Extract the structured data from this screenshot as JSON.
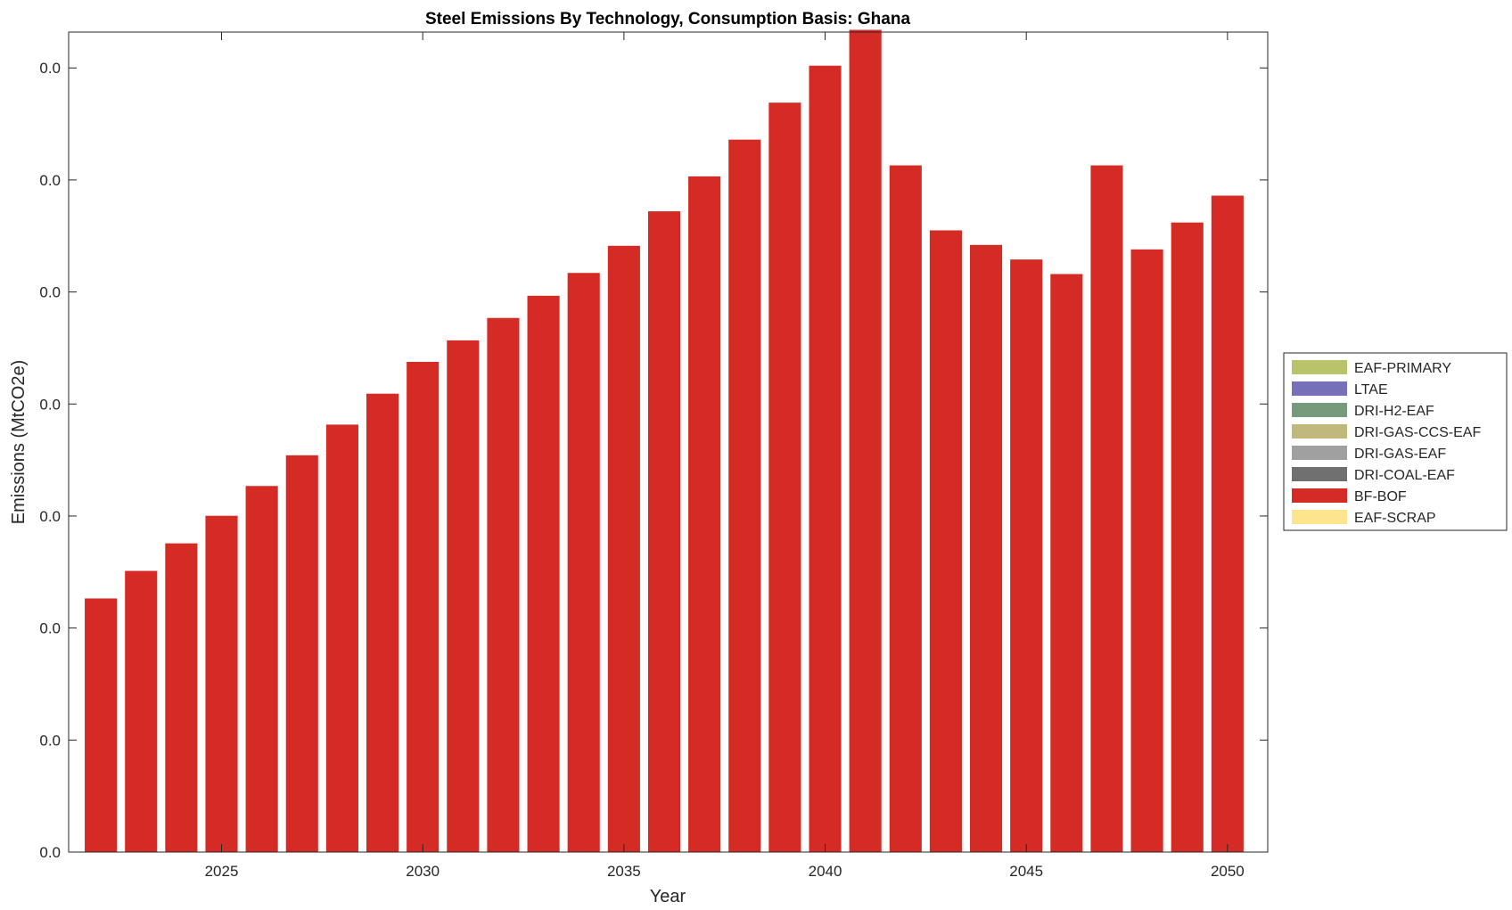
{
  "chart_data": {
    "type": "bar",
    "stacked": true,
    "title": "Steel Emissions By Technology, Consumption Basis: Ghana",
    "xlabel": "Year",
    "ylabel": "Emissions (MtCO2e)",
    "x": [
      2022,
      2023,
      2024,
      2025,
      2026,
      2027,
      2028,
      2029,
      2030,
      2031,
      2032,
      2033,
      2034,
      2035,
      2036,
      2037,
      2038,
      2039,
      2040,
      2041,
      2042,
      2043,
      2044,
      2045,
      2046,
      2047,
      2048,
      2049,
      2050
    ],
    "xlim": [
      2021.2,
      2051.0
    ],
    "ylim": [
      0,
      0.0366
    ],
    "xticks": [
      2025,
      2030,
      2035,
      2040,
      2045,
      2050
    ],
    "yticks": [
      0,
      0.005,
      0.01,
      0.015,
      0.02,
      0.025,
      0.03,
      0.035
    ],
    "ytick_labels": [
      "0.0",
      "0.0",
      "0.0",
      "0.0",
      "0.0",
      "0.0",
      "0.0",
      "0.0"
    ],
    "grid": false,
    "legend_position": "right",
    "series": [
      {
        "name": "EAF-PRIMARY",
        "color": "#b8c36a",
        "values": [
          0,
          0,
          0,
          0,
          0,
          0,
          0,
          0,
          0,
          0,
          0,
          0,
          0,
          0,
          0,
          0,
          0,
          0,
          0,
          0,
          0,
          0,
          0,
          0,
          0,
          0,
          0,
          0,
          0
        ]
      },
      {
        "name": "LTAE",
        "color": "#7570b8",
        "values": [
          0,
          0,
          0,
          0,
          0,
          0,
          0,
          0,
          0,
          0,
          0,
          0,
          0,
          0,
          0,
          0,
          0,
          0,
          0,
          0,
          0,
          0,
          0,
          0,
          0,
          0,
          0,
          0,
          0
        ]
      },
      {
        "name": "DRI-H2-EAF",
        "color": "#779a7d",
        "values": [
          0,
          0,
          0,
          0,
          0,
          0,
          0,
          0,
          0,
          0,
          0,
          0,
          0,
          0,
          0,
          0,
          0,
          0,
          0,
          0,
          0,
          0,
          0,
          0,
          0,
          0,
          0,
          0,
          0
        ]
      },
      {
        "name": "DRI-GAS-CCS-EAF",
        "color": "#c1b97c",
        "values": [
          0,
          0,
          0,
          0,
          0,
          0,
          0,
          0,
          0,
          0,
          0,
          0,
          0,
          0,
          0,
          0,
          0,
          0,
          0,
          0,
          0,
          0,
          0,
          0,
          0,
          0,
          0,
          0,
          0
        ]
      },
      {
        "name": "DRI-GAS-EAF",
        "color": "#a0a0a0",
        "values": [
          0,
          0,
          0,
          0,
          0,
          0,
          0,
          0,
          0,
          0,
          0,
          0,
          0,
          0,
          0,
          0,
          0,
          0,
          0,
          0,
          0,
          0,
          0,
          0,
          0,
          0,
          0,
          0,
          0
        ]
      },
      {
        "name": "DRI-COAL-EAF",
        "color": "#707070",
        "values": [
          0,
          0,
          0,
          0,
          0,
          0,
          0,
          0,
          0,
          0,
          0,
          0,
          0,
          0,
          0,
          0,
          0,
          0,
          0,
          0,
          0,
          0,
          0,
          0,
          0,
          0,
          0,
          0,
          0
        ]
      },
      {
        "name": "BF-BOF",
        "color": "#d42b25",
        "values": [
          0.01132,
          0.01255,
          0.01378,
          0.01501,
          0.01634,
          0.01771,
          0.01908,
          0.02046,
          0.02188,
          0.02284,
          0.02384,
          0.02483,
          0.02585,
          0.02706,
          0.0286,
          0.03016,
          0.0318,
          0.03345,
          0.0351,
          0.0367,
          0.03065,
          0.02775,
          0.0271,
          0.02645,
          0.0258,
          0.03065,
          0.0269,
          0.0281,
          0.0293
        ]
      },
      {
        "name": "EAF-SCRAP",
        "color": "#fde58e",
        "values": [
          0,
          0,
          0,
          0,
          0,
          0,
          0,
          0,
          0,
          0,
          0,
          0,
          0,
          0,
          0,
          0,
          0,
          0,
          0,
          0,
          0,
          0,
          0,
          0,
          0,
          0,
          0,
          0,
          0
        ]
      }
    ]
  }
}
